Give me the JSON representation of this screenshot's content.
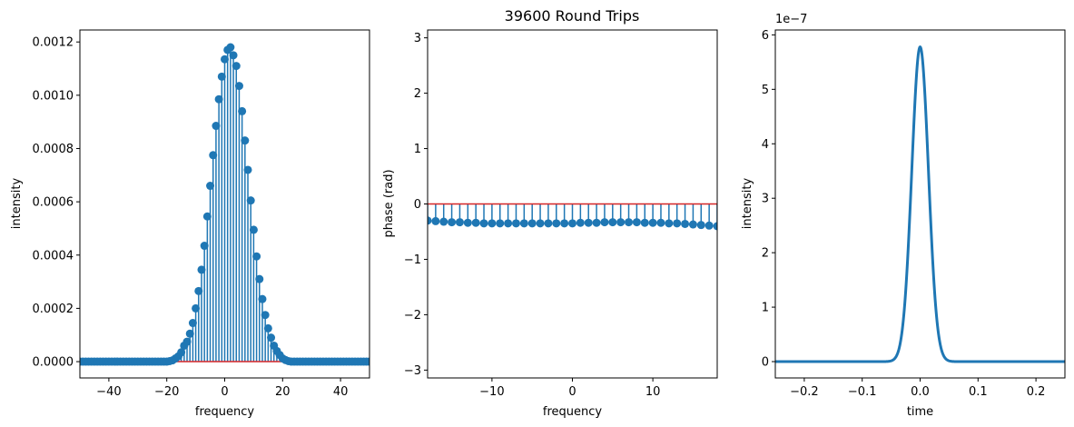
{
  "figure_title": "39600 Round Trips",
  "chart_data": [
    {
      "type": "stem",
      "title": "",
      "xlabel": "frequency",
      "ylabel": "intensity",
      "xlim": [
        -50,
        50
      ],
      "ylim": [
        -6.12e-05,
        0.001245
      ],
      "xticks": [
        -40,
        -20,
        0,
        20,
        40
      ],
      "xtick_labels": [
        "−40",
        "−20",
        "0",
        "20",
        "40"
      ],
      "yticks": [
        0,
        0.0002,
        0.0004,
        0.0006,
        0.0008,
        0.001,
        0.0012
      ],
      "ytick_labels": [
        "0.0000",
        "0.0002",
        "0.0004",
        "0.0006",
        "0.0008",
        "0.0010",
        "0.0012"
      ],
      "baseline": 0,
      "series": [
        {
          "color": "#1f77b4",
          "baseline_color": "#d62728",
          "x": [
            -50,
            -49,
            -48,
            -47,
            -46,
            -45,
            -44,
            -43,
            -42,
            -41,
            -40,
            -39,
            -38,
            -37,
            -36,
            -35,
            -34,
            -33,
            -32,
            -31,
            -30,
            -29,
            -28,
            -27,
            -26,
            -25,
            -24,
            -23,
            -22,
            -21,
            -20,
            -19,
            -18,
            -17,
            -16,
            -15,
            -14,
            -13,
            -12,
            -11,
            -10,
            -9,
            -8,
            -7,
            -6,
            -5,
            -4,
            -3,
            -2,
            -1,
            0,
            1,
            2,
            3,
            4,
            5,
            6,
            7,
            8,
            9,
            10,
            11,
            12,
            13,
            14,
            15,
            16,
            17,
            18,
            19,
            20,
            21,
            22,
            23,
            24,
            25,
            26,
            27,
            28,
            29,
            30,
            31,
            32,
            33,
            34,
            35,
            36,
            37,
            38,
            39,
            40,
            41,
            42,
            43,
            44,
            45,
            46,
            47,
            48,
            49,
            50
          ],
          "y": [
            0,
            0,
            0,
            0,
            0,
            0,
            0,
            0,
            0,
            0,
            0,
            0,
            0,
            0,
            0,
            0,
            0,
            0,
            0,
            0,
            0,
            0,
            0,
            0,
            0,
            0,
            0,
            0,
            0,
            0,
            0,
            2e-06,
            5e-06,
            1.2e-05,
            2e-05,
            3.5e-05,
            6e-05,
            7.5e-05,
            0.000105,
            0.000145,
            0.0002,
            0.000265,
            0.000345,
            0.000435,
            0.000545,
            0.00066,
            0.000775,
            0.000885,
            0.000985,
            0.00107,
            0.001135,
            0.00117,
            0.00118,
            0.00115,
            0.00111,
            0.001035,
            0.00094,
            0.00083,
            0.00072,
            0.000605,
            0.000495,
            0.000395,
            0.00031,
            0.000235,
            0.000175,
            0.000125,
            9e-05,
            6e-05,
            4e-05,
            2.5e-05,
            1.2e-05,
            6e-06,
            2e-06,
            0,
            0,
            0,
            0,
            0,
            0,
            0,
            0,
            0,
            0,
            0,
            0,
            0,
            0,
            0,
            0,
            0,
            0,
            0,
            0,
            0,
            0,
            0,
            0,
            0,
            0,
            0,
            0
          ]
        }
      ]
    },
    {
      "type": "stem",
      "title": "39600 Round Trips",
      "xlabel": "frequency",
      "ylabel": "phase (rad)",
      "xlim": [
        -18,
        18
      ],
      "ylim": [
        -3.14159,
        3.14159
      ],
      "xticks": [
        -10,
        0,
        10
      ],
      "xtick_labels": [
        "−10",
        "0",
        "10"
      ],
      "yticks": [
        -3,
        -2,
        -1,
        0,
        1,
        2,
        3
      ],
      "ytick_labels": [
        "−3",
        "−2",
        "−1",
        "0",
        "1",
        "2",
        "3"
      ],
      "baseline": 0,
      "series": [
        {
          "color": "#1f77b4",
          "baseline_color": "#d62728",
          "x": [
            -18,
            -17,
            -16,
            -15,
            -14,
            -13,
            -12,
            -11,
            -10,
            -9,
            -8,
            -7,
            -6,
            -5,
            -4,
            -3,
            -2,
            -1,
            0,
            1,
            2,
            3,
            4,
            5,
            6,
            7,
            8,
            9,
            10,
            11,
            12,
            13,
            14,
            15,
            16,
            17,
            18
          ],
          "y": [
            -0.3,
            -0.31,
            -0.32,
            -0.33,
            -0.33,
            -0.34,
            -0.34,
            -0.35,
            -0.35,
            -0.35,
            -0.35,
            -0.35,
            -0.35,
            -0.35,
            -0.35,
            -0.35,
            -0.35,
            -0.35,
            -0.35,
            -0.34,
            -0.34,
            -0.34,
            -0.33,
            -0.33,
            -0.33,
            -0.33,
            -0.33,
            -0.34,
            -0.34,
            -0.34,
            -0.35,
            -0.35,
            -0.36,
            -0.37,
            -0.38,
            -0.39,
            -0.4
          ]
        }
      ]
    },
    {
      "type": "line",
      "title": "",
      "xlabel": "time",
      "ylabel": "intensity",
      "xlim": [
        -0.25,
        0.25
      ],
      "ylim": [
        -3e-08,
        6.09e-07
      ],
      "xticks": [
        -0.2,
        -0.1,
        0,
        0.1,
        0.2
      ],
      "xtick_labels": [
        "−0.2",
        "−0.1",
        "0.0",
        "0.1",
        "0.2"
      ],
      "yticks": [
        0,
        1e-07,
        2e-07,
        3e-07,
        4e-07,
        5e-07,
        6e-07
      ],
      "ytick_labels": [
        "0",
        "1",
        "2",
        "3",
        "4",
        "5",
        "6"
      ],
      "offset_text": "1e−7",
      "series": [
        {
          "color": "#1f77b4",
          "peak": 5.78e-07,
          "center": 0,
          "sigma": 0.0144
        }
      ]
    }
  ]
}
